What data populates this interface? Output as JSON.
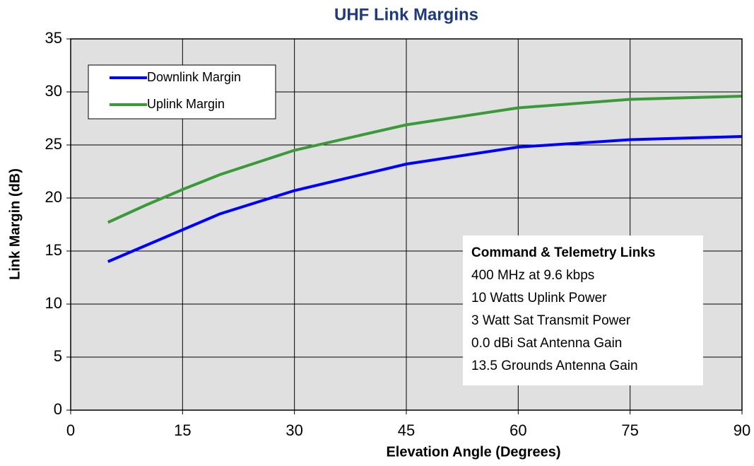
{
  "chart_data": {
    "type": "line",
    "title": "UHF Link Margins",
    "x_label": "Elevation Angle (Degrees)",
    "y_label": "Link Margin (dB)",
    "x": [
      5,
      10,
      15,
      20,
      30,
      45,
      60,
      75,
      90
    ],
    "series": [
      {
        "name": "Downlink Margin",
        "color": "#0000ff",
        "values": [
          14.0,
          15.5,
          17.0,
          18.5,
          20.7,
          23.2,
          24.8,
          25.5,
          25.8
        ]
      },
      {
        "name": "Uplink Margin",
        "color": "#3a9a3a",
        "values": [
          17.7,
          19.3,
          20.8,
          22.2,
          24.5,
          26.9,
          28.5,
          29.3,
          29.6
        ]
      }
    ],
    "xlim": [
      0,
      90
    ],
    "xticks": [
      0,
      15,
      30,
      45,
      60,
      75,
      90
    ],
    "ylim": [
      0,
      35
    ],
    "yticks": [
      0,
      5,
      10,
      15,
      20,
      25,
      30,
      35
    ],
    "grid": true,
    "legend": "upper left",
    "annotation": {
      "title": "Command & Telemetry Links",
      "lines": [
        "400 MHz at 9.6 kbps",
        "10 Watts Uplink Power",
        "3 Watt Sat Transmit Power",
        "0.0 dBi Sat Antenna Gain",
        "13.5 Grounds Antenna Gain"
      ]
    }
  }
}
